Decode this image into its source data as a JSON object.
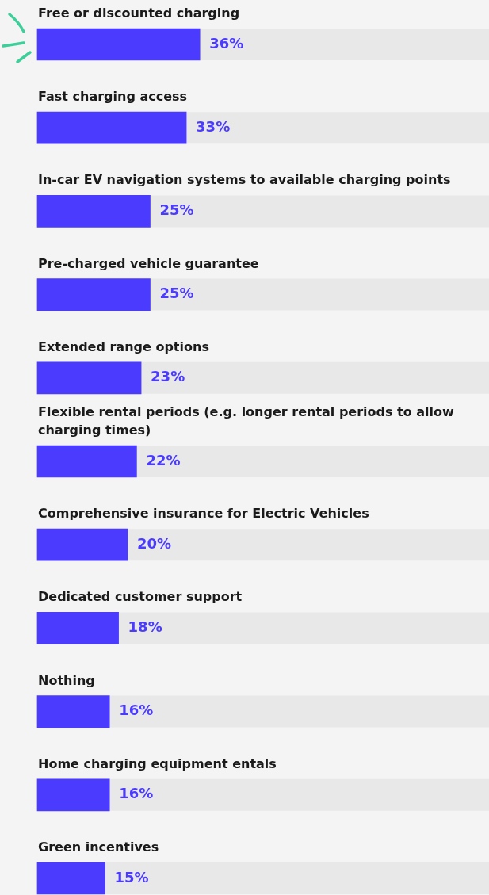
{
  "chart_data": {
    "type": "bar",
    "orientation": "horizontal",
    "tick_labels": "y",
    "xlim": [
      0,
      100
    ],
    "color": "#4b3bff",
    "categories": [
      "Free or discounted charging",
      "Fast charging access",
      "In-car EV navigation systems to available charging points",
      "Pre-charged vehicle guarantee",
      "Extended range options",
      "Flexible rental periods (e.g. longer rental periods to allow charging times)",
      "Comprehensive insurance for Electric Vehicles",
      "Dedicated customer support",
      "Nothing",
      "Home charging equipment entals",
      "Green incentives"
    ],
    "values": [
      36,
      33,
      25,
      25,
      23,
      22,
      20,
      18,
      16,
      16,
      15
    ],
    "value_labels": [
      "36%",
      "33%",
      "25%",
      "25%",
      "23%",
      "22%",
      "20%",
      "18%",
      "16%",
      "16%",
      "15%"
    ]
  }
}
